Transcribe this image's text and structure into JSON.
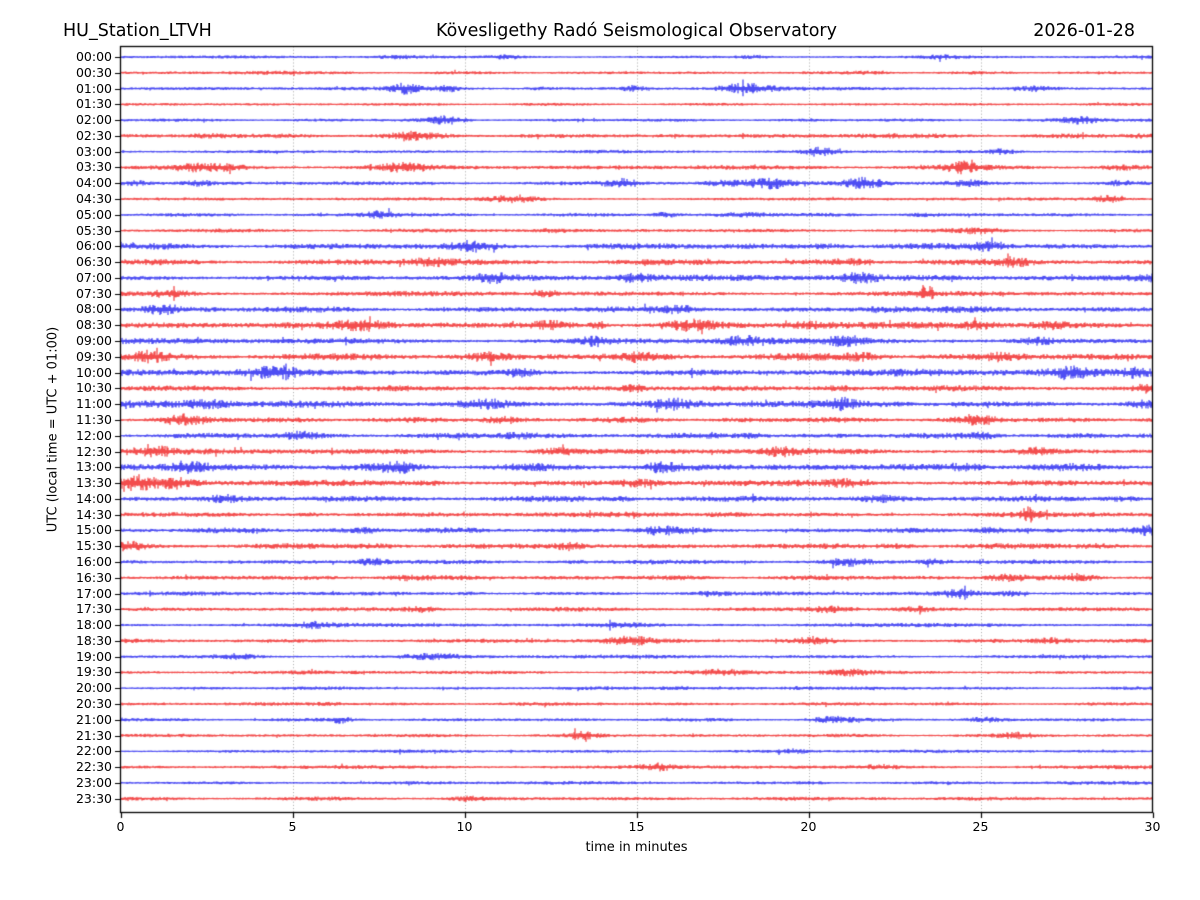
{
  "header": {
    "station": "HU_Station_LTVH",
    "observatory": "Kövesligethy Radó Seismological Observatory",
    "date": "2026-01-28"
  },
  "chart_data": {
    "type": "line",
    "subtype": "helicorder-seismogram",
    "title_left": "HU_Station_LTVH",
    "title_center": "Kövesligethy Radó Seismological Observatory",
    "title_right": "2026-01-28",
    "xlabel": "time in minutes",
    "ylabel": "UTC (local time = UTC + 01:00)",
    "xlim": [
      0,
      30
    ],
    "xticks": [
      0,
      5,
      10,
      15,
      20,
      25,
      30
    ],
    "grid_minutes": [
      5,
      10,
      15,
      20,
      25
    ],
    "grid_color": "#888888",
    "frame_color": "#000000",
    "trace_colors": {
      "hour": "#0000ee",
      "half_hour": "#ee0000"
    },
    "row_minutes_per_line": 30,
    "bursts_format": "[center_minute, extra_amplitude, width_minutes]",
    "rows": [
      {
        "label": "00:00",
        "color": "blue",
        "noise": 0.7,
        "bursts": [
          [
            8,
            1.2,
            0.7
          ],
          [
            11.3,
            1.2,
            0.5
          ],
          [
            18.5,
            1.1,
            0.5
          ],
          [
            24,
            0.9,
            0.6
          ]
        ]
      },
      {
        "label": "00:30",
        "color": "red",
        "noise": 0.65,
        "bursts": [
          [
            4,
            1.0,
            0.8
          ],
          [
            22,
            0.8,
            0.7
          ]
        ]
      },
      {
        "label": "01:00",
        "color": "blue",
        "noise": 0.8,
        "bursts": [
          [
            8.3,
            2.0,
            0.45
          ],
          [
            9.5,
            2.3,
            0.35
          ],
          [
            12.2,
            1.2,
            0.4
          ],
          [
            14.9,
            1.6,
            0.3
          ],
          [
            18.1,
            3.4,
            0.75
          ],
          [
            26.6,
            1.4,
            0.5
          ]
        ]
      },
      {
        "label": "01:30",
        "color": "red",
        "noise": 0.6,
        "bursts": []
      },
      {
        "label": "02:00",
        "color": "blue",
        "noise": 0.7,
        "bursts": [
          [
            9.5,
            2.0,
            0.5
          ],
          [
            27.9,
            2.3,
            0.55
          ]
        ]
      },
      {
        "label": "02:30",
        "color": "red",
        "noise": 1.0,
        "bursts": [
          [
            2.6,
            1.6,
            0.6
          ],
          [
            8.6,
            1.4,
            0.8
          ],
          [
            21.6,
            1.3,
            0.8
          ],
          [
            29.6,
            1.8,
            0.5
          ]
        ]
      },
      {
        "label": "03:00",
        "color": "blue",
        "noise": 0.7,
        "bursts": [
          [
            20.3,
            2.3,
            0.45
          ],
          [
            25.6,
            1.3,
            0.4
          ]
        ]
      },
      {
        "label": "03:30",
        "color": "red",
        "noise": 1.1,
        "bursts": [
          [
            2.5,
            1.4,
            1.0
          ],
          [
            8.2,
            1.5,
            0.7
          ],
          [
            24.5,
            2.0,
            0.5
          ],
          [
            29,
            1.3,
            0.5
          ]
        ]
      },
      {
        "label": "04:00",
        "color": "blue",
        "noise": 0.9,
        "bursts": [
          [
            0.4,
            1.8,
            0.4
          ],
          [
            2.3,
            1.5,
            0.4
          ],
          [
            14.6,
            1.6,
            0.5
          ],
          [
            17.6,
            2.8,
            0.8
          ],
          [
            18.9,
            3.0,
            0.6
          ],
          [
            21.6,
            3.3,
            0.55
          ],
          [
            24.6,
            1.8,
            0.5
          ],
          [
            29,
            1.3,
            0.4
          ]
        ]
      },
      {
        "label": "04:30",
        "color": "red",
        "noise": 0.7,
        "bursts": [
          [
            11.5,
            2.0,
            0.7
          ],
          [
            28.7,
            2.0,
            0.4
          ]
        ]
      },
      {
        "label": "05:00",
        "color": "blue",
        "noise": 0.8,
        "bursts": [
          [
            7.5,
            2.3,
            0.5
          ],
          [
            15.8,
            1.8,
            0.3
          ],
          [
            18.2,
            1.6,
            0.8
          ],
          [
            23.2,
            1.2,
            0.5
          ]
        ]
      },
      {
        "label": "05:30",
        "color": "red",
        "noise": 0.85,
        "bursts": [
          [
            12.5,
            1.2,
            0.6
          ],
          [
            25,
            1.0,
            0.6
          ]
        ]
      },
      {
        "label": "06:00",
        "color": "blue",
        "noise": 1.5,
        "bursts": [
          [
            10.3,
            2.0,
            0.6
          ],
          [
            20.6,
            1.8,
            0.5
          ],
          [
            25.2,
            2.0,
            0.5
          ]
        ]
      },
      {
        "label": "06:30",
        "color": "red",
        "noise": 1.4,
        "bursts": [
          [
            9,
            1.8,
            0.8
          ],
          [
            21.2,
            2.0,
            0.5
          ],
          [
            26,
            1.6,
            0.5
          ]
        ]
      },
      {
        "label": "07:00",
        "color": "blue",
        "noise": 1.4,
        "bursts": [
          [
            10.8,
            1.8,
            0.5
          ],
          [
            14.9,
            2.0,
            0.5
          ],
          [
            21.4,
            1.8,
            0.5
          ],
          [
            29.8,
            2.2,
            0.5
          ]
        ]
      },
      {
        "label": "07:30",
        "color": "red",
        "noise": 1.2,
        "bursts": [
          [
            1.5,
            2.2,
            0.6
          ],
          [
            12.4,
            2.0,
            0.3
          ],
          [
            23.4,
            3.3,
            0.22
          ]
        ]
      },
      {
        "label": "08:00",
        "color": "blue",
        "noise": 1.4,
        "bursts": [
          [
            1.2,
            2.2,
            0.5
          ],
          [
            16.3,
            1.8,
            0.5
          ],
          [
            22,
            1.6,
            0.6
          ]
        ]
      },
      {
        "label": "08:30",
        "color": "red",
        "noise": 1.6,
        "bursts": [
          [
            7,
            1.8,
            0.6
          ],
          [
            12.6,
            2.2,
            0.6
          ],
          [
            13.9,
            4.4,
            0.22
          ],
          [
            16.5,
            2.7,
            0.7
          ],
          [
            20,
            1.8,
            0.6
          ],
          [
            24.9,
            2.7,
            0.5
          ],
          [
            27,
            1.8,
            0.5
          ]
        ]
      },
      {
        "label": "09:00",
        "color": "blue",
        "noise": 1.4,
        "bursts": [
          [
            13.8,
            2.0,
            0.4
          ],
          [
            18.1,
            2.3,
            0.6
          ],
          [
            21.1,
            2.0,
            0.5
          ],
          [
            26.6,
            1.8,
            0.5
          ]
        ]
      },
      {
        "label": "09:30",
        "color": "red",
        "noise": 1.7,
        "bursts": [
          [
            0.8,
            2.2,
            0.5
          ],
          [
            10.6,
            2.0,
            0.5
          ],
          [
            15.1,
            1.8,
            0.5
          ],
          [
            21.6,
            2.2,
            0.5
          ],
          [
            25.6,
            2.0,
            0.5
          ]
        ]
      },
      {
        "label": "10:00",
        "color": "blue",
        "noise": 1.7,
        "bursts": [
          [
            4.5,
            2.0,
            0.6
          ],
          [
            11.6,
            2.0,
            0.5
          ],
          [
            27.6,
            2.3,
            0.6
          ],
          [
            29.6,
            2.3,
            0.4
          ]
        ]
      },
      {
        "label": "10:30",
        "color": "red",
        "noise": 1.3,
        "bursts": [
          [
            14.9,
            2.3,
            0.3
          ],
          [
            20.9,
            3.0,
            0.5
          ],
          [
            29.8,
            2.3,
            0.3
          ]
        ]
      },
      {
        "label": "11:00",
        "color": "blue",
        "noise": 1.7,
        "bursts": [
          [
            2.5,
            2.0,
            0.6
          ],
          [
            10.6,
            2.3,
            0.8
          ],
          [
            16.1,
            1.8,
            0.5
          ],
          [
            20.9,
            1.8,
            0.4
          ],
          [
            29.6,
            2.3,
            0.4
          ]
        ]
      },
      {
        "label": "11:30",
        "color": "red",
        "noise": 1.3,
        "bursts": [
          [
            1.8,
            2.3,
            0.7
          ],
          [
            11.1,
            1.6,
            0.5
          ],
          [
            24.9,
            2.0,
            0.5
          ]
        ]
      },
      {
        "label": "12:00",
        "color": "blue",
        "noise": 1.3,
        "bursts": [
          [
            5.2,
            1.6,
            0.5
          ],
          [
            11.6,
            1.8,
            0.6
          ],
          [
            18.4,
            1.8,
            0.4
          ],
          [
            25.1,
            2.0,
            0.5
          ]
        ]
      },
      {
        "label": "12:30",
        "color": "red",
        "noise": 1.4,
        "bursts": [
          [
            1,
            1.8,
            0.5
          ],
          [
            12.6,
            2.0,
            0.6
          ],
          [
            19.1,
            1.6,
            0.5
          ],
          [
            26.6,
            1.8,
            0.5
          ]
        ]
      },
      {
        "label": "13:00",
        "color": "blue",
        "noise": 1.8,
        "bursts": [
          [
            2,
            2.6,
            0.6
          ],
          [
            8.1,
            1.8,
            0.5
          ],
          [
            15.6,
            1.8,
            0.5
          ],
          [
            24.6,
            2.0,
            0.5
          ]
        ]
      },
      {
        "label": "13:30",
        "color": "red",
        "noise": 1.5,
        "bursts": [
          [
            0.5,
            3.8,
            0.55
          ],
          [
            1.6,
            2.7,
            0.5
          ],
          [
            9.1,
            1.6,
            0.5
          ],
          [
            15.1,
            1.8,
            0.5
          ],
          [
            21.1,
            1.6,
            0.5
          ]
        ]
      },
      {
        "label": "14:00",
        "color": "blue",
        "noise": 1.4,
        "bursts": [
          [
            3,
            1.8,
            0.5
          ],
          [
            14.6,
            1.8,
            0.5
          ],
          [
            22.1,
            1.6,
            0.5
          ],
          [
            29.1,
            2.6,
            0.5
          ]
        ]
      },
      {
        "label": "14:30",
        "color": "red",
        "noise": 1.2,
        "bursts": [
          [
            5.5,
            1.6,
            0.5
          ],
          [
            17.6,
            1.6,
            0.5
          ],
          [
            26.4,
            3.3,
            0.28
          ]
        ]
      },
      {
        "label": "15:00",
        "color": "blue",
        "noise": 1.2,
        "bursts": [
          [
            7.1,
            1.6,
            0.5
          ],
          [
            15.6,
            1.8,
            0.5
          ],
          [
            25.2,
            2.8,
            0.5
          ],
          [
            29.8,
            2.0,
            0.3
          ]
        ]
      },
      {
        "label": "15:30",
        "color": "red",
        "noise": 1.3,
        "bursts": [
          [
            0.3,
            2.0,
            0.4
          ],
          [
            7.6,
            1.6,
            0.6
          ],
          [
            13,
            2.2,
            0.4
          ],
          [
            22.6,
            1.6,
            0.5
          ],
          [
            28.5,
            1.8,
            0.6
          ]
        ]
      },
      {
        "label": "16:00",
        "color": "blue",
        "noise": 1.0,
        "bursts": [
          [
            7.3,
            1.8,
            0.4
          ],
          [
            13.1,
            1.3,
            0.5
          ],
          [
            21.1,
            2.6,
            0.6
          ],
          [
            23.6,
            1.3,
            0.4
          ]
        ]
      },
      {
        "label": "16:30",
        "color": "red",
        "noise": 1.1,
        "bursts": [
          [
            8.1,
            1.3,
            0.5
          ],
          [
            25.6,
            1.8,
            0.6
          ],
          [
            28.1,
            1.6,
            0.5
          ]
        ]
      },
      {
        "label": "17:00",
        "color": "blue",
        "noise": 0.9,
        "bursts": [
          [
            10.1,
            1.3,
            0.5
          ],
          [
            17.1,
            1.3,
            0.4
          ],
          [
            24.4,
            1.8,
            0.5
          ],
          [
            25.9,
            1.8,
            0.4
          ]
        ]
      },
      {
        "label": "17:30",
        "color": "red",
        "noise": 0.95,
        "bursts": [
          [
            8.8,
            2.0,
            0.45
          ],
          [
            20.6,
            1.6,
            0.6
          ],
          [
            23.1,
            1.3,
            0.5
          ]
        ]
      },
      {
        "label": "18:00",
        "color": "blue",
        "noise": 0.85,
        "bursts": [
          [
            5.6,
            1.1,
            0.5
          ],
          [
            14.5,
            1.2,
            0.9
          ]
        ]
      },
      {
        "label": "18:30",
        "color": "red",
        "noise": 1.0,
        "bursts": [
          [
            14.8,
            1.5,
            0.6
          ],
          [
            20.1,
            1.6,
            0.6
          ],
          [
            27.1,
            1.3,
            0.5
          ]
        ]
      },
      {
        "label": "19:00",
        "color": "blue",
        "noise": 0.85,
        "bursts": [
          [
            3.4,
            2.0,
            0.6
          ],
          [
            9.1,
            1.3,
            0.8
          ]
        ]
      },
      {
        "label": "19:30",
        "color": "red",
        "noise": 0.85,
        "bursts": [
          [
            17.6,
            1.3,
            0.8
          ],
          [
            21.1,
            1.3,
            0.6
          ]
        ]
      },
      {
        "label": "20:00",
        "color": "blue",
        "noise": 0.75,
        "bursts": [
          [
            16.1,
            1.1,
            0.5
          ],
          [
            19.6,
            1.4,
            0.5
          ]
        ]
      },
      {
        "label": "20:30",
        "color": "red",
        "noise": 0.75,
        "bursts": [
          [
            6.1,
            1.0,
            0.5
          ]
        ]
      },
      {
        "label": "21:00",
        "color": "blue",
        "noise": 0.75,
        "bursts": [
          [
            6.4,
            1.7,
            0.28
          ],
          [
            20.6,
            1.3,
            0.6
          ],
          [
            25.1,
            1.1,
            0.5
          ]
        ]
      },
      {
        "label": "21:30",
        "color": "red",
        "noise": 0.75,
        "bursts": [
          [
            13.4,
            1.3,
            0.4
          ],
          [
            26.1,
            1.1,
            0.5
          ]
        ]
      },
      {
        "label": "22:00",
        "color": "blue",
        "noise": 0.7,
        "bursts": [
          [
            19.6,
            1.0,
            0.5
          ]
        ]
      },
      {
        "label": "22:30",
        "color": "red",
        "noise": 0.85,
        "bursts": [
          [
            15.6,
            1.6,
            0.5
          ],
          [
            22.1,
            1.1,
            0.5
          ]
        ]
      },
      {
        "label": "23:00",
        "color": "blue",
        "noise": 0.75,
        "bursts": [
          [
            20.1,
            1.0,
            0.5
          ]
        ]
      },
      {
        "label": "23:30",
        "color": "red",
        "noise": 0.85,
        "bursts": [
          [
            10.1,
            1.1,
            0.5
          ],
          [
            22.1,
            1.1,
            0.5
          ]
        ]
      }
    ]
  }
}
